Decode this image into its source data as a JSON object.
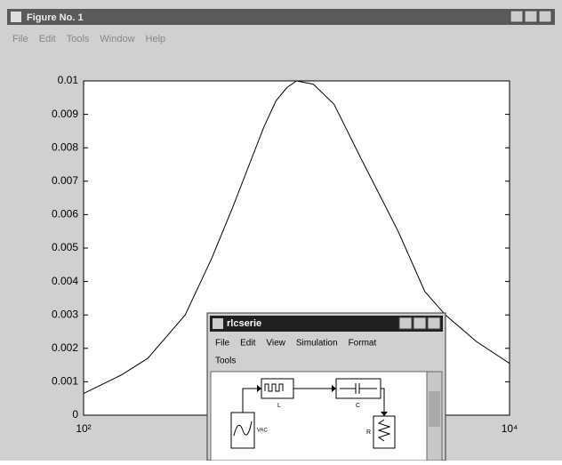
{
  "window": {
    "title": "Figure No. 1",
    "menu": [
      "File",
      "Edit",
      "Tools",
      "Window",
      "Help"
    ]
  },
  "chart_data": {
    "type": "line",
    "x_scale": "log",
    "x": [
      100,
      150,
      200,
      300,
      400,
      500,
      600,
      700,
      800,
      900,
      1000,
      1200,
      1500,
      2000,
      3000,
      4000,
      5000,
      7000,
      10000
    ],
    "values": [
      0.00065,
      0.0012,
      0.0017,
      0.003,
      0.0047,
      0.0062,
      0.0075,
      0.0086,
      0.0094,
      0.0098,
      0.01,
      0.0099,
      0.0093,
      0.0077,
      0.0055,
      0.0037,
      0.003,
      0.0022,
      0.00155
    ],
    "color": "#000000",
    "xlim": [
      100,
      10000
    ],
    "ylim": [
      0,
      0.01
    ],
    "xticks": [
      {
        "value": 100,
        "label": "10²"
      },
      {
        "value": 10000,
        "label": "10⁴"
      }
    ],
    "yticks": [
      0,
      0.001,
      0.002,
      0.003,
      0.004,
      0.005,
      0.006,
      0.007,
      0.008,
      0.009,
      0.01
    ]
  },
  "simulink": {
    "title": "rlcserie",
    "menu": [
      "File",
      "Edit",
      "View",
      "Simulation",
      "Format",
      "Tools"
    ],
    "blocks": {
      "source": "VAC",
      "inductor": "L",
      "capacitor": "C",
      "resistor": "R"
    }
  }
}
